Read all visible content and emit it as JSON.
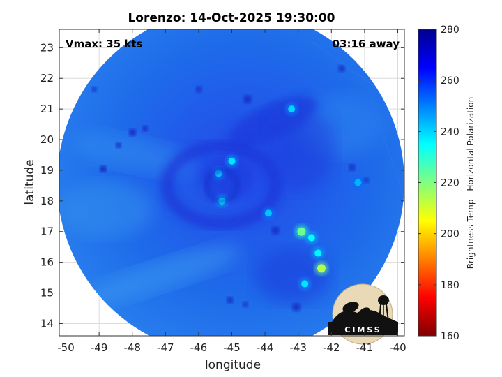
{
  "chart_data": {
    "type": "heatmap",
    "title": "Lorenzo: 14-Oct-2025 19:30:00",
    "xlabel": "longitude",
    "ylabel": "latitude",
    "xlim": [
      -50.2,
      -39.8
    ],
    "ylim": [
      13.6,
      23.6
    ],
    "x_ticks": [
      -50,
      -49,
      -48,
      -47,
      -46,
      -45,
      -44,
      -43,
      -42,
      -41,
      -40
    ],
    "y_ticks": [
      14,
      15,
      16,
      17,
      18,
      19,
      20,
      21,
      22,
      23
    ],
    "grid": true,
    "storm_center": {
      "lon": -45.3,
      "lat": 18.5
    },
    "annotations": {
      "vmax": "Vmax: 35 kts",
      "time_away": "03:16 away"
    },
    "colorbar": {
      "label": "Brightness Temp - Horizontal Polarization",
      "min": 160,
      "max": 280,
      "ticks": [
        160,
        180,
        200,
        220,
        240,
        260,
        280
      ],
      "colormap": [
        "#7f0000",
        "#ff0000",
        "#ff8000",
        "#ffff00",
        "#80ff80",
        "#00ffff",
        "#0080ff",
        "#0000ff",
        "#00008f"
      ]
    },
    "features": [
      {
        "lon": -45.0,
        "lat": 19.3,
        "value": 238
      },
      {
        "lon": -45.4,
        "lat": 18.9,
        "value": 240
      },
      {
        "lon": -45.3,
        "lat": 18.0,
        "value": 236
      },
      {
        "lon": -43.9,
        "lat": 17.6,
        "value": 242
      },
      {
        "lon": -43.2,
        "lat": 21.0,
        "value": 240
      },
      {
        "lon": -42.9,
        "lat": 17.0,
        "value": 222
      },
      {
        "lon": -42.6,
        "lat": 16.8,
        "value": 235
      },
      {
        "lon": -42.4,
        "lat": 16.3,
        "value": 236
      },
      {
        "lon": -42.3,
        "lat": 15.8,
        "value": 214
      },
      {
        "lon": -42.8,
        "lat": 15.3,
        "value": 238
      },
      {
        "lon": -41.2,
        "lat": 18.6,
        "value": 244
      }
    ]
  },
  "logo": {
    "text": "CIMSS"
  }
}
